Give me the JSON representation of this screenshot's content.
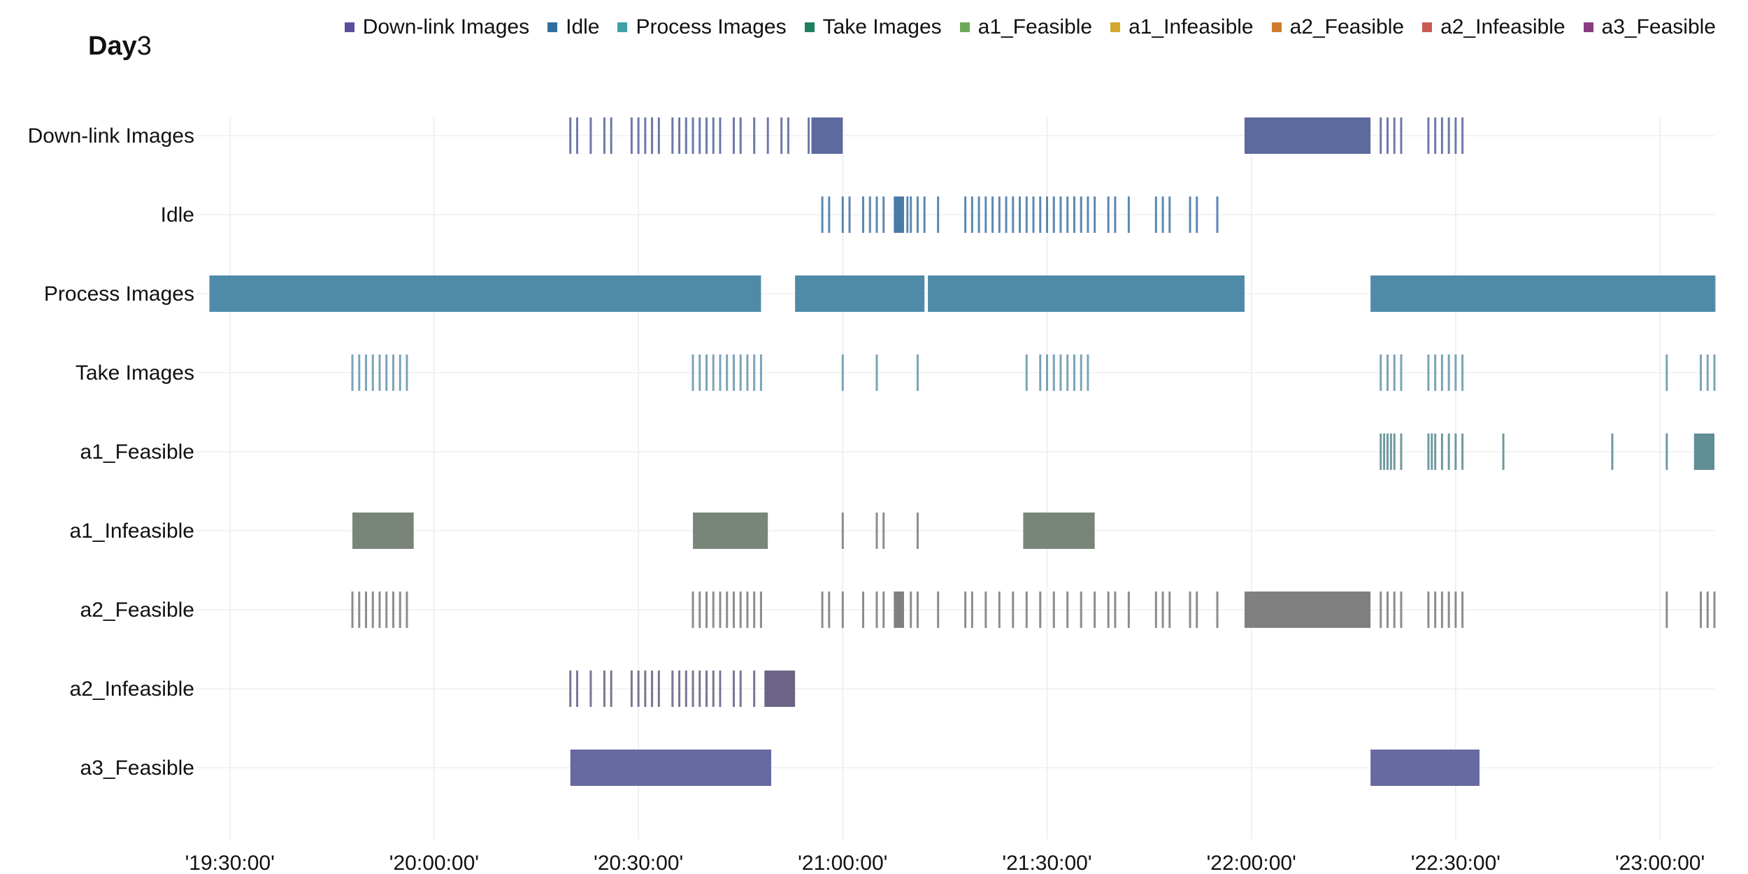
{
  "title": {
    "bold": "Day",
    "rest": "3"
  },
  "legend": [
    {
      "label": "Down-link Images",
      "color": "#5b4e9a"
    },
    {
      "label": "Idle",
      "color": "#2f6ea0"
    },
    {
      "label": "Process Images",
      "color": "#3fa0a8"
    },
    {
      "label": "Take Images",
      "color": "#1f8060"
    },
    {
      "label": "a1_Feasible",
      "color": "#6aaa5a"
    },
    {
      "label": "a1_Infeasible",
      "color": "#d4a82e"
    },
    {
      "label": "a2_Feasible",
      "color": "#d07a30"
    },
    {
      "label": "a2_Infeasible",
      "color": "#c85a50"
    },
    {
      "label": "a3_Feasible",
      "color": "#8a3c82"
    }
  ],
  "chart_data": {
    "type": "timeline",
    "x_axis": {
      "range": [
        "19:25:00",
        "23:08:00"
      ],
      "ticks": [
        "'19:30:00'",
        "'20:00:00'",
        "'20:30:00'",
        "'21:00:00'",
        "'21:30:00'",
        "'22:00:00'",
        "'22:30:00'",
        "'23:00:00'"
      ],
      "grid": true
    },
    "rows": [
      {
        "name": "Down-link Images",
        "color": "#5c6a9e",
        "segments": [
          [
            "20:55:24",
            "21:00:00"
          ],
          [
            "21:59:00",
            "22:17:30"
          ]
        ],
        "events": [
          "20:20:00",
          "20:21:00",
          "20:23:00",
          "20:25:00",
          "20:26:00",
          "20:29:00",
          "20:30:00",
          "20:31:00",
          "20:32:00",
          "20:33:00",
          "20:35:00",
          "20:36:00",
          "20:37:00",
          "20:38:00",
          "20:39:00",
          "20:40:00",
          "20:41:00",
          "20:42:00",
          "20:44:00",
          "20:45:00",
          "20:47:00",
          "20:49:00",
          "20:51:00",
          "20:52:00",
          "20:55:00",
          "22:19:00",
          "22:20:00",
          "22:21:00",
          "22:22:00",
          "22:26:00",
          "22:27:00",
          "22:28:00",
          "22:29:00",
          "22:30:00",
          "22:31:00"
        ]
      },
      {
        "name": "Idle",
        "color": "#4a7aa8",
        "segments": [
          [
            "21:07:30",
            "21:09:00"
          ]
        ],
        "events": [
          "20:57:00",
          "20:58:00",
          "21:00:00",
          "21:01:00",
          "21:03:00",
          "21:04:00",
          "21:05:00",
          "21:06:00",
          "21:09:30",
          "21:10:00",
          "21:11:00",
          "21:12:00",
          "21:14:00",
          "21:18:00",
          "21:19:00",
          "21:20:00",
          "21:21:00",
          "21:22:00",
          "21:23:00",
          "21:24:00",
          "21:25:00",
          "21:26:00",
          "21:27:00",
          "21:28:00",
          "21:29:00",
          "21:30:00",
          "21:31:00",
          "21:32:00",
          "21:33:00",
          "21:34:00",
          "21:35:00",
          "21:36:00",
          "21:37:00",
          "21:39:00",
          "21:40:00",
          "21:42:00",
          "21:46:00",
          "21:47:00",
          "21:48:00",
          "21:51:00",
          "21:52:00",
          "21:55:00"
        ]
      },
      {
        "name": "Process Images",
        "color": "#4f8aa8",
        "segments": [
          [
            "19:27:00",
            "20:48:00"
          ],
          [
            "20:53:00",
            "21:12:00"
          ],
          [
            "21:12:30",
            "21:59:00"
          ],
          [
            "22:17:30",
            "23:11:00"
          ]
        ],
        "events": [
          "19:48:00",
          "19:50:00",
          "19:52:00",
          "19:54:00",
          "19:56:00",
          "20:20:00",
          "20:22:00",
          "20:25:00",
          "20:28:00",
          "20:31:00",
          "20:34:00",
          "20:38:00",
          "20:41:00",
          "20:44:00",
          "20:47:00",
          "21:05:00",
          "21:27:00",
          "21:30:00",
          "21:33:00",
          "21:36:00",
          "22:19:00",
          "22:21:00",
          "22:25:00",
          "22:28:00",
          "23:02:00",
          "23:05:00",
          "23:08:00"
        ]
      },
      {
        "name": "Take Images",
        "color": "#6a9ab0",
        "segments": [],
        "events": [
          "19:48:00",
          "19:49:00",
          "19:50:00",
          "19:51:00",
          "19:52:00",
          "19:53:00",
          "19:54:00",
          "19:55:00",
          "19:56:00",
          "20:38:00",
          "20:39:00",
          "20:40:00",
          "20:41:00",
          "20:42:00",
          "20:43:00",
          "20:44:00",
          "20:45:00",
          "20:46:00",
          "20:47:00",
          "20:48:00",
          "21:00:00",
          "21:05:00",
          "21:11:00",
          "21:27:00",
          "21:29:00",
          "21:30:00",
          "21:31:00",
          "21:32:00",
          "21:33:00",
          "21:34:00",
          "21:35:00",
          "21:36:00",
          "22:19:00",
          "22:20:00",
          "22:21:00",
          "22:22:00",
          "22:26:00",
          "22:27:00",
          "22:28:00",
          "22:29:00",
          "22:30:00",
          "22:31:00",
          "23:01:00",
          "23:06:00",
          "23:07:00",
          "23:08:00",
          "23:09:00"
        ]
      },
      {
        "name": "a1_Feasible",
        "color": "#5f8e94",
        "segments": [
          [
            "23:05:00",
            "23:09:30"
          ]
        ],
        "events": [
          "22:19:00",
          "22:19:30",
          "22:20:00",
          "22:20:30",
          "22:21:00",
          "22:22:00",
          "22:26:00",
          "22:26:30",
          "22:27:00",
          "22:28:00",
          "22:29:00",
          "22:30:00",
          "22:31:00",
          "22:37:00",
          "22:53:00",
          "23:01:00"
        ]
      },
      {
        "name": "a1_Infeasible",
        "color": "#7a857a",
        "segments": [
          [
            "19:48:00",
            "19:57:00"
          ],
          [
            "20:38:00",
            "20:49:00"
          ],
          [
            "21:26:30",
            "21:37:00"
          ]
        ],
        "events": [
          "21:00:00",
          "21:05:00",
          "21:06:00",
          "21:11:00"
        ]
      },
      {
        "name": "a2_Feasible",
        "color": "#808080",
        "segments": [
          [
            "21:07:30",
            "21:09:00"
          ],
          [
            "21:59:00",
            "22:17:30"
          ]
        ],
        "events": [
          "19:48:00",
          "19:49:00",
          "19:50:00",
          "19:51:00",
          "19:52:00",
          "19:53:00",
          "19:54:00",
          "19:55:00",
          "19:56:00",
          "20:38:00",
          "20:39:00",
          "20:40:00",
          "20:41:00",
          "20:42:00",
          "20:43:00",
          "20:44:00",
          "20:45:00",
          "20:46:00",
          "20:47:00",
          "20:48:00",
          "20:57:00",
          "20:58:00",
          "21:00:00",
          "21:03:00",
          "21:05:00",
          "21:06:00",
          "21:10:00",
          "21:11:00",
          "21:14:00",
          "21:18:00",
          "21:19:00",
          "21:21:00",
          "21:23:00",
          "21:25:00",
          "21:27:00",
          "21:29:00",
          "21:31:00",
          "21:33:00",
          "21:35:00",
          "21:37:00",
          "21:39:00",
          "21:40:00",
          "21:42:00",
          "21:46:00",
          "21:47:00",
          "21:48:00",
          "21:51:00",
          "21:52:00",
          "21:55:00",
          "22:19:00",
          "22:20:00",
          "22:21:00",
          "22:22:00",
          "22:26:00",
          "22:27:00",
          "22:28:00",
          "22:29:00",
          "22:30:00",
          "22:31:00",
          "23:01:00",
          "23:06:00",
          "23:07:00",
          "23:08:00",
          "23:09:00"
        ]
      },
      {
        "name": "a2_Infeasible",
        "color": "#6e6488",
        "segments": [
          [
            "20:48:30",
            "20:53:00"
          ]
        ],
        "events": [
          "20:20:00",
          "20:21:00",
          "20:23:00",
          "20:25:00",
          "20:26:00",
          "20:29:00",
          "20:30:00",
          "20:31:00",
          "20:32:00",
          "20:33:00",
          "20:35:00",
          "20:36:00",
          "20:37:00",
          "20:38:00",
          "20:39:00",
          "20:40:00",
          "20:41:00",
          "20:42:00",
          "20:44:00",
          "20:45:00",
          "20:47:00"
        ]
      },
      {
        "name": "a3_Feasible",
        "color": "#676aa0",
        "segments": [
          [
            "20:20:00",
            "20:49:30"
          ],
          [
            "22:17:30",
            "22:33:30"
          ]
        ],
        "events": [
          "20:24:00",
          "20:27:00",
          "20:31:00",
          "20:35:00",
          "20:39:00",
          "20:43:00",
          "22:21:00",
          "22:25:00",
          "22:29:00"
        ]
      }
    ]
  }
}
